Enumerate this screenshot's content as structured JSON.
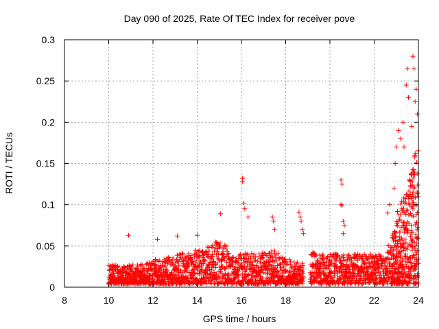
{
  "chart_data": {
    "type": "scatter",
    "title": "Day 090 of 2025, Rate Of TEC Index for receiver pove",
    "xlabel": "GPS time / hours",
    "ylabel": "ROTI / TECUs",
    "xlim": [
      8,
      24
    ],
    "ylim": [
      0,
      0.3
    ],
    "xticks": [
      "8",
      "10",
      "12",
      "14",
      "16",
      "18",
      "20",
      "22",
      "24"
    ],
    "yticks": [
      "0",
      "0.05",
      "0.1",
      "0.15",
      "0.2",
      "0.25",
      "0.3"
    ],
    "grid": true,
    "marker": "plus",
    "color": "#ff0000",
    "baseline_profile": [
      [
        10.0,
        0.0,
        0.028
      ],
      [
        10.5,
        0.0,
        0.026
      ],
      [
        11.0,
        0.0,
        0.027
      ],
      [
        11.5,
        0.0,
        0.028
      ],
      [
        12.0,
        0.0,
        0.033
      ],
      [
        12.5,
        0.0,
        0.036
      ],
      [
        13.0,
        0.0,
        0.04
      ],
      [
        13.5,
        0.0,
        0.042
      ],
      [
        14.0,
        0.0,
        0.045
      ],
      [
        14.5,
        0.0,
        0.05
      ],
      [
        15.0,
        0.0,
        0.058
      ],
      [
        15.3,
        0.0,
        0.055
      ],
      [
        15.6,
        0.0,
        0.04
      ],
      [
        16.0,
        0.0,
        0.04
      ],
      [
        16.5,
        0.0,
        0.042
      ],
      [
        17.0,
        0.0,
        0.042
      ],
      [
        17.5,
        0.0,
        0.045
      ],
      [
        18.0,
        0.0,
        0.035
      ],
      [
        18.8,
        0.0,
        0.03
      ],
      [
        19.2,
        0.0,
        0.045
      ],
      [
        19.5,
        0.0,
        0.04
      ],
      [
        20.0,
        0.0,
        0.04
      ],
      [
        20.5,
        0.0,
        0.042
      ],
      [
        21.0,
        0.0,
        0.04
      ],
      [
        21.5,
        0.0,
        0.04
      ],
      [
        22.0,
        0.0,
        0.04
      ],
      [
        22.5,
        0.0,
        0.045
      ],
      [
        22.8,
        0.0,
        0.06
      ],
      [
        23.0,
        0.0,
        0.09
      ],
      [
        23.5,
        0.0,
        0.12
      ],
      [
        24.0,
        0.0,
        0.18
      ]
    ],
    "outliers": [
      [
        10.9,
        0.063
      ],
      [
        12.2,
        0.058
      ],
      [
        13.1,
        0.062
      ],
      [
        14.0,
        0.063
      ],
      [
        15.05,
        0.089
      ],
      [
        16.05,
        0.132
      ],
      [
        16.05,
        0.128
      ],
      [
        16.1,
        0.102
      ],
      [
        16.15,
        0.095
      ],
      [
        16.3,
        0.085
      ],
      [
        17.4,
        0.085
      ],
      [
        17.45,
        0.08
      ],
      [
        17.5,
        0.07
      ],
      [
        18.6,
        0.091
      ],
      [
        18.65,
        0.085
      ],
      [
        18.7,
        0.08
      ],
      [
        18.75,
        0.07
      ],
      [
        18.8,
        0.065
      ],
      [
        20.5,
        0.13
      ],
      [
        20.55,
        0.125
      ],
      [
        20.5,
        0.1
      ],
      [
        20.55,
        0.099
      ],
      [
        20.6,
        0.08
      ],
      [
        20.65,
        0.075
      ],
      [
        20.6,
        0.065
      ],
      [
        22.6,
        0.09
      ],
      [
        22.7,
        0.1
      ],
      [
        22.9,
        0.12
      ],
      [
        22.95,
        0.15
      ],
      [
        23.0,
        0.17
      ],
      [
        23.1,
        0.19
      ],
      [
        23.2,
        0.18
      ],
      [
        23.3,
        0.2
      ],
      [
        23.35,
        0.17
      ],
      [
        23.45,
        0.245
      ],
      [
        23.5,
        0.265
      ],
      [
        23.55,
        0.23
      ],
      [
        23.7,
        0.195
      ],
      [
        23.75,
        0.28
      ],
      [
        23.8,
        0.265
      ],
      [
        23.85,
        0.225
      ],
      [
        23.9,
        0.24
      ],
      [
        23.95,
        0.21
      ],
      [
        23.6,
        0.1
      ],
      [
        23.7,
        0.11
      ],
      [
        23.8,
        0.12
      ],
      [
        23.9,
        0.1
      ]
    ]
  }
}
